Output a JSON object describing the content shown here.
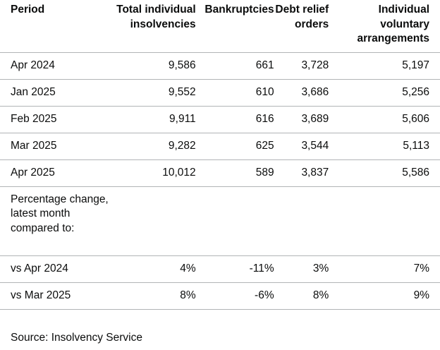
{
  "table": {
    "headers": [
      "Period",
      "Total individual insolvencies",
      "Bankruptcies",
      "Debt relief orders",
      "Individual voluntary arrangements"
    ],
    "rows": [
      [
        "Apr 2024",
        "9,586",
        "661",
        "3,728",
        "5,197"
      ],
      [
        "Jan 2025",
        "9,552",
        "610",
        "3,686",
        "5,256"
      ],
      [
        "Feb 2025",
        "9,911",
        "616",
        "3,689",
        "5,606"
      ],
      [
        "Mar 2025",
        "9,282",
        "625",
        "3,544",
        "5,113"
      ],
      [
        "Apr 2025",
        "10,012",
        "589",
        "3,837",
        "5,586"
      ]
    ],
    "note": "Percentage change, latest month compared to:",
    "change_rows": [
      [
        "vs Apr 2024",
        "4%",
        "-11%",
        "3%",
        "7%"
      ],
      [
        "vs Mar 2025",
        "8%",
        "-6%",
        "8%",
        "9%"
      ]
    ]
  },
  "source": "Source: Insolvency Service"
}
